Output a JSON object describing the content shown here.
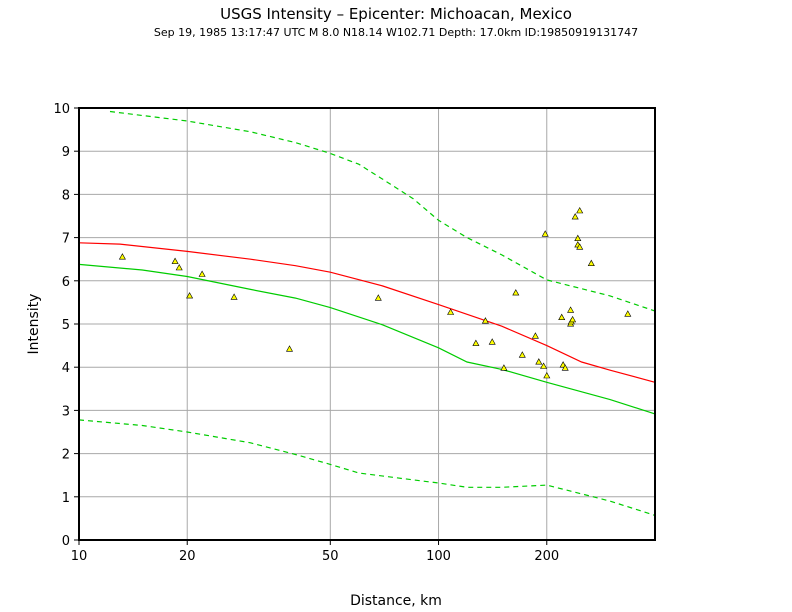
{
  "chart_data": {
    "type": "scatter",
    "title": "USGS Intensity –  Epicenter: Michoacan, Mexico",
    "subtitle": "Sep 19, 1985 13:17:47 UTC   M 8.0    N18.14 W102.71   Depth: 17.0km   ID:19850919131747",
    "xlabel": "Distance, km",
    "ylabel": "Intensity",
    "xscale": "log",
    "xlim": [
      10,
      400
    ],
    "ylim": [
      0,
      10
    ],
    "grid": true,
    "x_ticks": [
      10,
      20,
      50,
      100,
      200
    ],
    "y_ticks": [
      0,
      1,
      2,
      3,
      4,
      5,
      6,
      7,
      8,
      9,
      10
    ],
    "observations": {
      "marker": "triangle",
      "color": "#ffff00",
      "points": [
        [
          13.2,
          6.55
        ],
        [
          18.5,
          6.45
        ],
        [
          19.0,
          6.3
        ],
        [
          20.3,
          5.65
        ],
        [
          22.0,
          6.15
        ],
        [
          27.0,
          5.62
        ],
        [
          38.5,
          4.42
        ],
        [
          68.0,
          5.6
        ],
        [
          108,
          5.27
        ],
        [
          127,
          4.55
        ],
        [
          135,
          5.07
        ],
        [
          141,
          4.58
        ],
        [
          152,
          3.98
        ],
        [
          164,
          5.72
        ],
        [
          171,
          4.28
        ],
        [
          186,
          4.72
        ],
        [
          190,
          4.12
        ],
        [
          196,
          4.02
        ],
        [
          198,
          7.08
        ],
        [
          200,
          3.8
        ],
        [
          220,
          5.15
        ],
        [
          222,
          4.05
        ],
        [
          225,
          3.98
        ],
        [
          233,
          5.32
        ],
        [
          233,
          5.0
        ],
        [
          234,
          5.05
        ],
        [
          236,
          5.1
        ],
        [
          240,
          7.48
        ],
        [
          244,
          6.98
        ],
        [
          244,
          6.83
        ],
        [
          247,
          6.78
        ],
        [
          247,
          7.62
        ],
        [
          266,
          6.4
        ],
        [
          336,
          5.23
        ]
      ]
    },
    "series": [
      {
        "color": "#ff0000",
        "style": "solid",
        "points": [
          [
            10,
            6.88
          ],
          [
            13,
            6.85
          ],
          [
            20,
            6.68
          ],
          [
            30,
            6.5
          ],
          [
            40,
            6.35
          ],
          [
            50,
            6.2
          ],
          [
            70,
            5.88
          ],
          [
            100,
            5.45
          ],
          [
            150,
            4.95
          ],
          [
            200,
            4.5
          ],
          [
            250,
            4.12
          ],
          [
            300,
            3.93
          ],
          [
            400,
            3.65
          ]
        ]
      },
      {
        "color": "#00cc00",
        "style": "solid",
        "points": [
          [
            10,
            6.38
          ],
          [
            15,
            6.25
          ],
          [
            20,
            6.1
          ],
          [
            30,
            5.8
          ],
          [
            40,
            5.6
          ],
          [
            50,
            5.38
          ],
          [
            70,
            4.98
          ],
          [
            100,
            4.45
          ],
          [
            120,
            4.12
          ],
          [
            150,
            3.95
          ],
          [
            200,
            3.65
          ],
          [
            300,
            3.25
          ],
          [
            400,
            2.92
          ]
        ]
      },
      {
        "color": "#00cc00",
        "style": "dashed",
        "points": [
          [
            12.2,
            9.92
          ],
          [
            20,
            9.7
          ],
          [
            30,
            9.45
          ],
          [
            40,
            9.2
          ],
          [
            50,
            8.95
          ],
          [
            60,
            8.7
          ],
          [
            70,
            8.35
          ],
          [
            85,
            7.9
          ],
          [
            100,
            7.4
          ],
          [
            120,
            7.0
          ],
          [
            150,
            6.6
          ],
          [
            200,
            6.02
          ],
          [
            300,
            5.65
          ],
          [
            400,
            5.3
          ]
        ]
      },
      {
        "color": "#00cc00",
        "style": "dashed",
        "points": [
          [
            10,
            2.78
          ],
          [
            15,
            2.65
          ],
          [
            20,
            2.5
          ],
          [
            30,
            2.25
          ],
          [
            40,
            1.98
          ],
          [
            50,
            1.75
          ],
          [
            60,
            1.55
          ],
          [
            80,
            1.42
          ],
          [
            100,
            1.32
          ],
          [
            120,
            1.22
          ],
          [
            150,
            1.22
          ],
          [
            200,
            1.27
          ],
          [
            300,
            0.9
          ],
          [
            400,
            0.57
          ]
        ]
      }
    ]
  }
}
